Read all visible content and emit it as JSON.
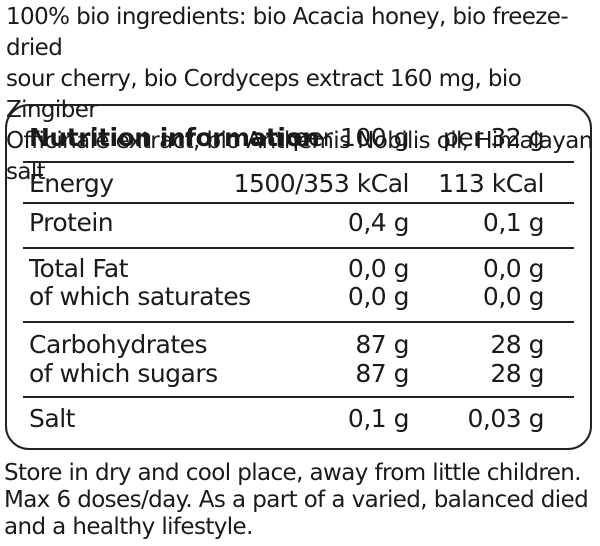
{
  "ingredients": [
    "100% bio ingredients: bio Acacia honey, bio freeze-dried",
    "sour cherry, bio Cordyceps extract 160 mg, bio Zingiber",
    "Officinale extract, bio Anthemis Nobilis oil, Himalayan salt"
  ],
  "nutrition": {
    "title": "Nutrition information",
    "col1": "per 100 g",
    "col2": "per 32 g",
    "energy": {
      "label": "Energy",
      "v1": "1500/353 kCal",
      "v2": "113 kCal"
    },
    "protein": {
      "label": "Protein",
      "v1": "0,4 g",
      "v2": "0,1 g"
    },
    "fat": {
      "label": "Total Fat",
      "v1": "0,0 g",
      "v2": "0,0 g"
    },
    "saturates": {
      "label": "of which saturates",
      "v1": "0,0 g",
      "v2": "0,0 g"
    },
    "carbs": {
      "label": "Carbohydrates",
      "v1": "87 g",
      "v2": "28 g"
    },
    "sugars": {
      "label": "of which sugars",
      "v1": "87 g",
      "v2": "28 g"
    },
    "salt": {
      "label": "Salt",
      "v1": "0,1 g",
      "v2": "0,03 g"
    }
  },
  "footer": [
    "Store in dry and cool place, away from little children.",
    "Max 6 doses/day. As a part of a varied, balanced died",
    "and a healthy lifestyle."
  ]
}
